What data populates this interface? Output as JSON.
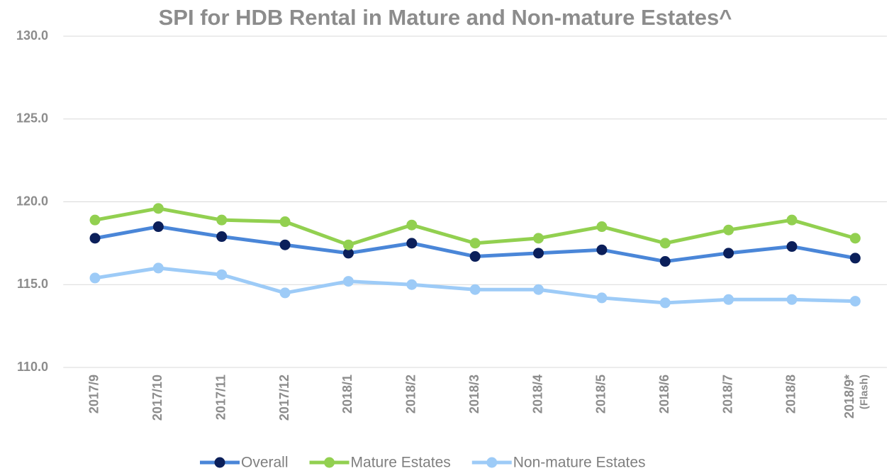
{
  "chart_data": {
    "type": "line",
    "title": "SPI for HDB Rental in Mature and Non-mature Estates^",
    "categories": [
      "2017/9",
      "2017/10",
      "2017/11",
      "2017/12",
      "2018/1",
      "2018/2",
      "2018/3",
      "2018/4",
      "2018/5",
      "2018/6",
      "2018/7",
      "2018/8",
      "2018/9*"
    ],
    "category_note": "(Flash)",
    "series": [
      {
        "name": "Overall",
        "color": "#4a86d8",
        "marker_color": "#0b1f5a",
        "values": [
          117.8,
          118.5,
          117.9,
          117.4,
          116.9,
          117.5,
          116.7,
          116.9,
          117.1,
          116.4,
          116.9,
          117.3,
          116.6
        ]
      },
      {
        "name": "Mature Estates",
        "color": "#92d050",
        "marker_color": "#92d050",
        "values": [
          118.9,
          119.6,
          118.9,
          118.8,
          117.4,
          118.6,
          117.5,
          117.8,
          118.5,
          117.5,
          118.3,
          118.9,
          117.8
        ]
      },
      {
        "name": "Non-mature Estates",
        "color": "#9dcbf7",
        "marker_color": "#9dcbf7",
        "values": [
          115.4,
          116.0,
          115.6,
          114.5,
          115.2,
          115.0,
          114.7,
          114.7,
          114.2,
          113.9,
          114.1,
          114.1,
          114.0
        ]
      }
    ],
    "ylim": [
      110,
      130
    ],
    "yticks": [
      {
        "value": 110,
        "label": "110.0"
      },
      {
        "value": 115,
        "label": "115.0"
      },
      {
        "value": 120,
        "label": "120.0"
      },
      {
        "value": 125,
        "label": "125.0"
      },
      {
        "value": 130,
        "label": "130.0"
      }
    ],
    "grid": true,
    "legend": "bottom"
  }
}
